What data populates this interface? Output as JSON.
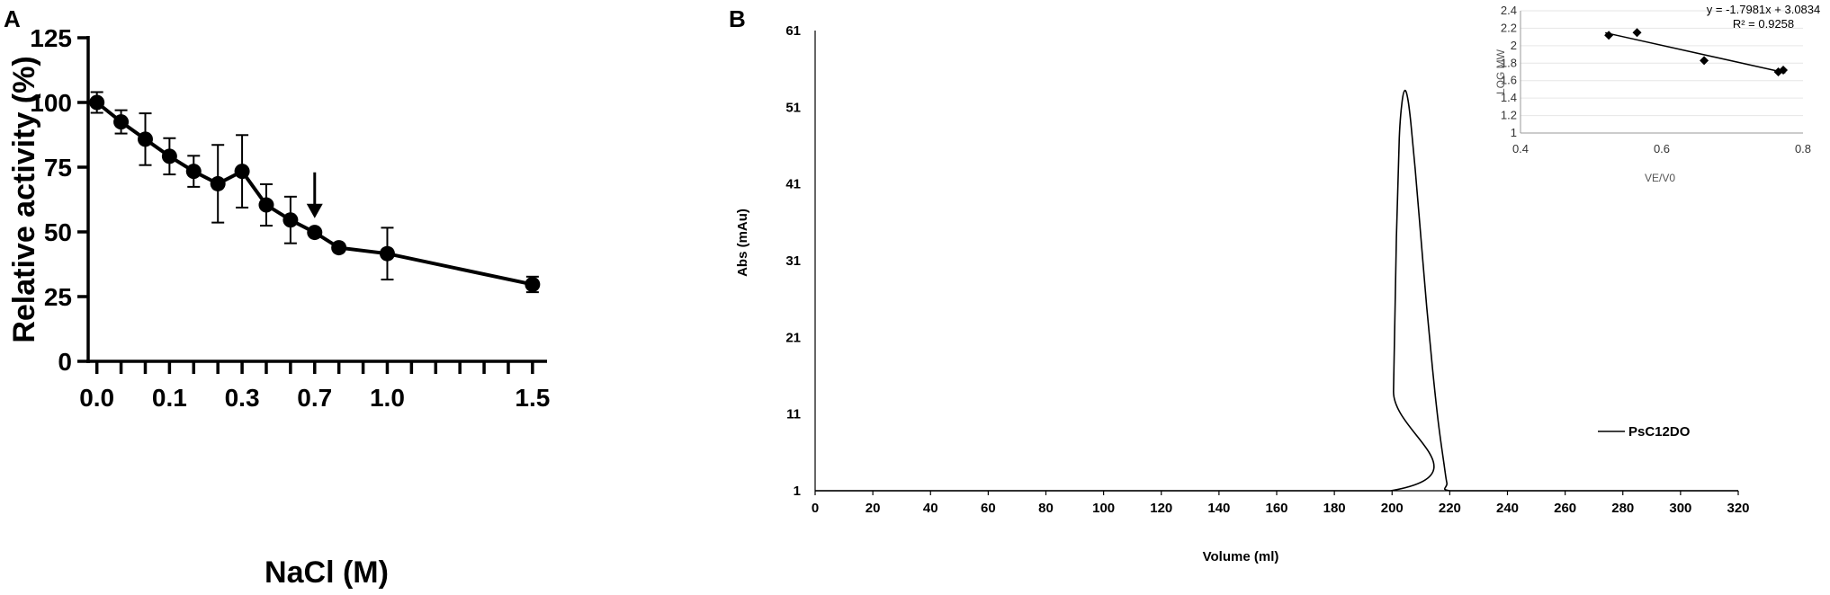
{
  "chart_data": [
    {
      "panel_label": "A",
      "type": "line",
      "xlabel": "NaCl (M)",
      "ylabel": "Relative activity (%)",
      "ylim": [
        0,
        125
      ],
      "yticks": [
        0,
        25,
        50,
        75,
        100,
        125
      ],
      "xlim": [
        -0.03,
        1.55
      ],
      "x_labeled_ticks": [
        {
          "x": 0.0,
          "label": "0.0"
        },
        {
          "x": 0.25,
          "label": "0.1"
        },
        {
          "x": 0.5,
          "label": "0.3"
        },
        {
          "x": 0.75,
          "label": "0.7"
        },
        {
          "x": 1.0,
          "label": "1.0"
        },
        {
          "x": 1.5,
          "label": "1.5"
        }
      ],
      "x_minor_ticks": [
        0.0833,
        0.1667,
        0.3333,
        0.4167,
        0.5833,
        0.6667,
        0.8333,
        0.9167,
        1.0833,
        1.1667,
        1.25,
        1.3333,
        1.4167
      ],
      "annotation": {
        "type": "arrow",
        "x": 0.75,
        "y_top": 73,
        "y_bottom": 56
      },
      "points": [
        {
          "x": 0.0,
          "y": 100,
          "err": 4
        },
        {
          "x": 0.0833,
          "y": 92.5,
          "err": 4.5
        },
        {
          "x": 0.1667,
          "y": 85.8,
          "err": 10
        },
        {
          "x": 0.25,
          "y": 79.2,
          "err": 7
        },
        {
          "x": 0.3333,
          "y": 73.4,
          "err": 6
        },
        {
          "x": 0.4167,
          "y": 68.6,
          "err": 15
        },
        {
          "x": 0.5,
          "y": 73.4,
          "err": 14
        },
        {
          "x": 0.5833,
          "y": 60.4,
          "err": 8
        },
        {
          "x": 0.6667,
          "y": 54.6,
          "err": 9
        },
        {
          "x": 0.75,
          "y": 49.8,
          "err": 0
        },
        {
          "x": 0.8333,
          "y": 43.9,
          "err": 0
        },
        {
          "x": 1.0,
          "y": 41.6,
          "err": 10
        },
        {
          "x": 1.5,
          "y": 29.7,
          "err": 3
        }
      ]
    },
    {
      "panel_label": "B",
      "type": "line",
      "xlabel": "Volume (ml)",
      "ylabel": "Abs (mAu)",
      "xlim": [
        0,
        320
      ],
      "ylim": [
        1,
        61
      ],
      "xticks": [
        0,
        20,
        40,
        60,
        80,
        100,
        120,
        140,
        160,
        180,
        200,
        220,
        240,
        260,
        280,
        300,
        320
      ],
      "yticks": [
        1,
        11,
        21,
        31,
        41,
        51,
        61
      ],
      "legend": "right",
      "series": [
        {
          "name": "PsC12DO",
          "color": "#000000",
          "x": [
            0,
            199.5,
            200.5,
            201.5,
            202.5,
            203.5,
            204.5,
            205.5,
            206.5,
            208,
            210,
            212,
            214,
            216,
            218,
            219,
            220,
            240,
            320
          ],
          "y": [
            1,
            1,
            14,
            34,
            47,
            51.8,
            53.2,
            52,
            49,
            43,
            34,
            25,
            17,
            10,
            4.5,
            2,
            1,
            1,
            1
          ]
        }
      ],
      "inset": {
        "type": "scatter",
        "xlabel": "VE/V0",
        "ylabel": "LOG MW",
        "xlim": [
          0.4,
          0.8
        ],
        "ylim": [
          1,
          2.4
        ],
        "xticks": [
          0.4,
          0.6,
          0.8
        ],
        "xtick_labels": [
          "0.4",
          "0.6",
          "0.8"
        ],
        "yticks": [
          1,
          1.2,
          1.4,
          1.6,
          1.8,
          2,
          2.2,
          2.4
        ],
        "ytick_labels": [
          "1",
          "1.2",
          "1.4",
          "1.6",
          "1.8",
          "2",
          "2.2",
          "2.4"
        ],
        "equation": "y = -1.7981x + 3.0834",
        "r_squared": "R² = 0.9258",
        "fit": {
          "slope": -1.7981,
          "intercept": 3.0834,
          "x_range": [
            0.52,
            0.775
          ]
        },
        "points": [
          {
            "x": 0.525,
            "y": 2.12
          },
          {
            "x": 0.565,
            "y": 2.15
          },
          {
            "x": 0.66,
            "y": 1.83
          },
          {
            "x": 0.765,
            "y": 1.7
          },
          {
            "x": 0.772,
            "y": 1.72
          }
        ]
      }
    }
  ]
}
